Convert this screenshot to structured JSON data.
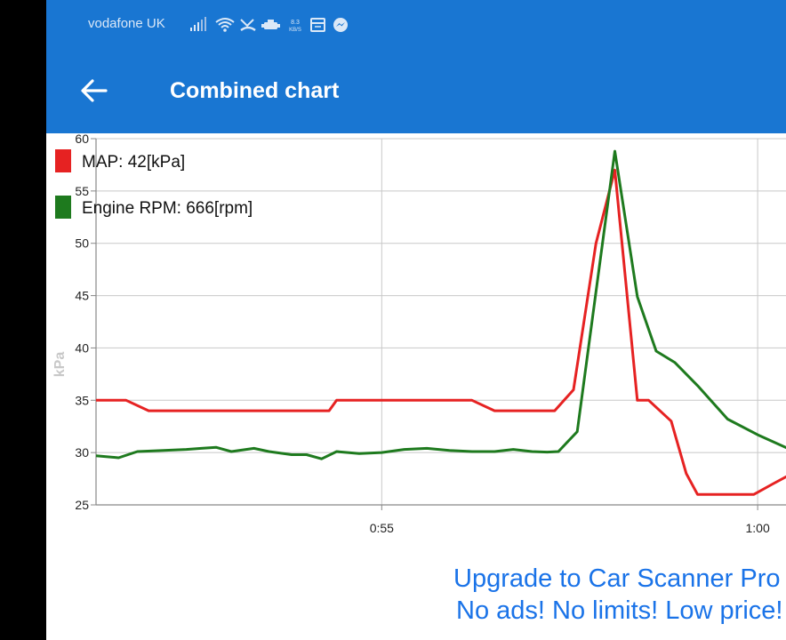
{
  "status_bar": {
    "carrier": "vodafone UK",
    "icons": [
      "signal-icon",
      "wifi-icon",
      "missed-call-icon",
      "obd-adapter-icon",
      "network-speed-icon",
      "calendar-icon",
      "messenger-icon"
    ],
    "network_speed": "8.3 KB/S"
  },
  "app_bar": {
    "title": "Combined chart",
    "back_icon": "arrow-left-icon",
    "color": "#1976d2"
  },
  "chart_data": {
    "type": "line",
    "ylabel": "kPa",
    "ylim": [
      25,
      60
    ],
    "y_ticks": [
      "25",
      "30",
      "35",
      "40",
      "45",
      "50",
      "55",
      "60"
    ],
    "x_ticks": [
      {
        "label": "0:55",
        "t": 55
      },
      {
        "label": "1:00",
        "t": 60
      }
    ],
    "xlim": [
      51.2,
      60.85
    ],
    "grid": true,
    "legend_placement": "top-left",
    "series": [
      {
        "name": "MAP: 42[kPa]",
        "color": "#e62222",
        "x": [
          51.2,
          51.6,
          51.9,
          52.3,
          52.7,
          53.1,
          53.5,
          53.9,
          54.3,
          54.4,
          54.7,
          55.0,
          55.4,
          55.8,
          56.2,
          56.5,
          56.9,
          57.3,
          57.55,
          57.85,
          58.1,
          58.4,
          58.55,
          58.85,
          59.05,
          59.2,
          59.6,
          59.95,
          60.2,
          60.85
        ],
        "y": [
          35,
          35,
          34,
          34,
          34,
          34,
          34,
          34,
          34,
          35,
          35,
          35,
          35,
          35,
          35,
          34,
          34,
          34,
          36,
          50,
          57,
          35,
          35,
          33,
          28,
          26,
          26,
          26,
          27,
          29.5
        ]
      },
      {
        "name": "Engine RPM: 666[rpm]",
        "color": "#1e7a1e",
        "x": [
          51.2,
          51.5,
          51.75,
          52.1,
          52.4,
          52.6,
          52.8,
          53.0,
          53.3,
          53.5,
          53.8,
          54.0,
          54.2,
          54.4,
          54.7,
          55.0,
          55.3,
          55.6,
          55.9,
          56.2,
          56.5,
          56.75,
          57.0,
          57.2,
          57.35,
          57.6,
          58.1,
          58.4,
          58.65,
          58.9,
          59.2,
          59.6,
          60.0,
          60.4,
          60.85
        ],
        "y": [
          29.7,
          29.5,
          30.1,
          30.2,
          30.3,
          30.4,
          30.5,
          30.1,
          30.4,
          30.1,
          29.8,
          29.8,
          29.4,
          30.1,
          29.9,
          30.0,
          30.3,
          30.4,
          30.2,
          30.1,
          30.1,
          30.3,
          30.1,
          30.05,
          30.1,
          32.0,
          58.8,
          44.9,
          39.7,
          38.6,
          36.4,
          33.2,
          31.7,
          30.4,
          30.0
        ]
      }
    ]
  },
  "promo": {
    "line1": "Upgrade to Car Scanner Pro",
    "line2": "No ads! No limits! Low price!"
  }
}
